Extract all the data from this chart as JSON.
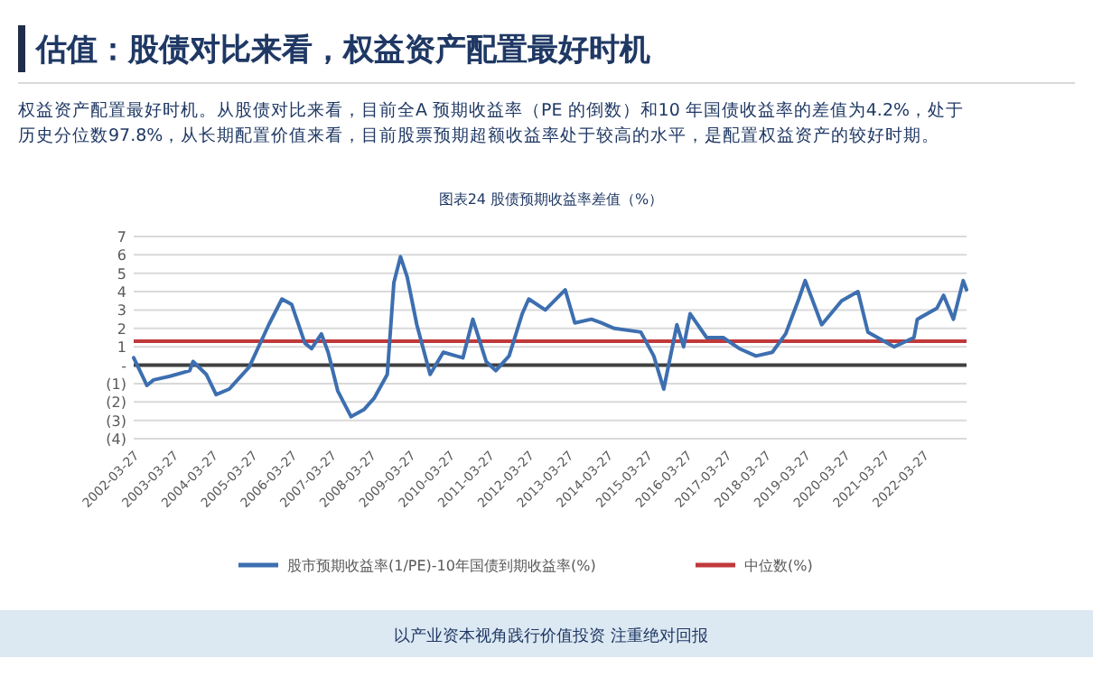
{
  "chart_data": {
    "type": "line",
    "title": "估值：股债对比来看，权益资产配置最好时机",
    "subtitle": "权益资产配置最好时机。从股债对比来看，目前全A 预期收益率（PE 的倒数）和10 年国债收益率的差值为4.2%，处于历史分位数97.8%，从长期配置价值来看，目前股票预期超额收益率处于较高的水平，是配置权益资产的较好时期。",
    "annotations": [
      "图表24 股债预期收益率差值（%）",
      "以产业资本视角践行价值投资 注重绝对回报"
    ],
    "x": [
      "2002-03",
      "2002-07",
      "2002-09",
      "2003-02",
      "2003-08",
      "2003-09",
      "2004-01",
      "2004-04",
      "2004-08",
      "2005-02",
      "2005-08",
      "2005-12",
      "2006-03",
      "2006-07",
      "2006-09",
      "2006-12",
      "2007-02",
      "2007-05",
      "2007-09",
      "2008-01",
      "2008-04",
      "2008-08",
      "2008-10",
      "2008-12",
      "2009-02",
      "2009-05",
      "2009-09",
      "2010-01",
      "2010-07",
      "2010-10",
      "2011-02",
      "2011-05",
      "2011-09",
      "2012-01",
      "2012-03",
      "2012-08",
      "2013-02",
      "2013-05",
      "2013-10",
      "2014-01",
      "2014-05",
      "2015-01",
      "2015-05",
      "2015-08",
      "2015-12",
      "2016-02",
      "2016-04",
      "2016-09",
      "2017-02",
      "2017-07",
      "2017-12",
      "2018-05",
      "2018-09",
      "2019-01",
      "2019-03",
      "2019-08",
      "2020-02",
      "2020-07",
      "2020-10",
      "2021-06",
      "2021-12",
      "2022-01",
      "2022-07",
      "2022-09",
      "2022-12",
      "2023-03",
      "2023-04"
    ],
    "series": [
      {
        "name": "股市预期收益率(1/PE)-10年国债到期收益率(%)",
        "color": "#3d6fb0",
        "values": [
          0.4,
          -1.1,
          -0.8,
          -0.6,
          -0.3,
          0.2,
          -0.5,
          -1.6,
          -1.3,
          -0.1,
          2.2,
          3.6,
          3.3,
          1.2,
          0.9,
          1.7,
          0.7,
          -1.4,
          -2.8,
          -2.4,
          -1.8,
          -0.5,
          4.5,
          5.9,
          4.8,
          2.2,
          -0.5,
          0.7,
          0.4,
          2.5,
          0.2,
          -0.3,
          0.5,
          2.8,
          3.6,
          3.0,
          4.1,
          2.3,
          2.5,
          2.3,
          2.0,
          1.8,
          0.5,
          -1.3,
          2.2,
          1.0,
          2.8,
          1.5,
          1.5,
          0.9,
          0.5,
          0.7,
          1.7,
          3.6,
          4.6,
          2.2,
          3.5,
          4.0,
          1.8,
          1.0,
          1.5,
          2.5,
          3.1,
          3.8,
          2.5,
          4.6,
          4.1
        ]
      }
    ],
    "ref_lines": [
      {
        "axis": "y",
        "value": 1.3,
        "label": "中位数(%)",
        "color": "#c0393b"
      }
    ],
    "xlim": [
      "2002-03",
      "2023-04"
    ],
    "xticks": [
      "2002-03-27",
      "2003-03-27",
      "2004-03-27",
      "2005-03-27",
      "2006-03-27",
      "2007-03-27",
      "2008-03-27",
      "2009-03-27",
      "2010-03-27",
      "2011-03-27",
      "2012-03-27",
      "2013-03-27",
      "2014-03-27",
      "2015-03-27",
      "2016-03-27",
      "2017-03-27",
      "2018-03-27",
      "2019-03-27",
      "2020-03-27",
      "2021-03-27",
      "2022-03-27"
    ],
    "ylim": [
      -4,
      7
    ],
    "yticks": [
      7,
      6,
      5,
      4,
      3,
      2,
      1,
      {
        "value": 0,
        "label": "-"
      },
      {
        "value": -1,
        "label": "(1)"
      },
      {
        "value": -2,
        "label": "(2)"
      },
      {
        "value": -3,
        "label": "(3)"
      },
      {
        "value": -4,
        "label": "(4)"
      }
    ],
    "grid": "y",
    "legend": "bottom",
    "marker": "none",
    "line_style": "solid"
  }
}
